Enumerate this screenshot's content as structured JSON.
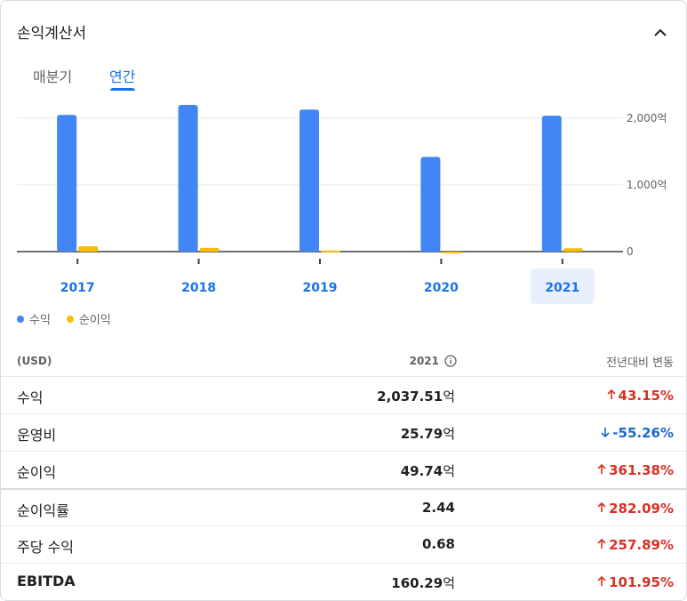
{
  "header": {
    "title": "손익계산서"
  },
  "tabs": [
    {
      "label": "매분기",
      "active": false
    },
    {
      "label": "연간",
      "active": true
    }
  ],
  "chart_data": {
    "type": "bar",
    "categories": [
      "2017",
      "2018",
      "2019",
      "2020",
      "2021"
    ],
    "selected_category": "2021",
    "series": [
      {
        "name": "수익",
        "color": "#4285f4",
        "values": [
          2050,
          2200,
          2130,
          1420,
          2037.51
        ]
      },
      {
        "name": "순이익",
        "color": "#fbbc04",
        "values": [
          80,
          55,
          15,
          -20,
          49.74
        ]
      }
    ],
    "ylim": [
      0,
      2000
    ],
    "yticks": [
      {
        "value": 2000,
        "label": "2,000억"
      },
      {
        "value": 1000,
        "label": "1,000억"
      },
      {
        "value": 0,
        "label": "0"
      }
    ],
    "grid": true,
    "legend": "bottom-left"
  },
  "table": {
    "unit_header": "(USD)",
    "year_header": "2021",
    "change_header": "전년대비 변동",
    "rows": [
      {
        "label": "수익",
        "value": "2,037.51",
        "unit": "억",
        "change": "43.15%",
        "direction": "up"
      },
      {
        "label": "운영비",
        "value": "25.79",
        "unit": "억",
        "change": "-55.26%",
        "direction": "down"
      },
      {
        "label": "순이익",
        "value": "49.74",
        "unit": "억",
        "change": "361.38%",
        "direction": "up"
      },
      {
        "label": "순이익률",
        "value": "2.44",
        "unit": "",
        "change": "282.09%",
        "direction": "up"
      },
      {
        "label": "주당 수익",
        "value": "0.68",
        "unit": "",
        "change": "257.89%",
        "direction": "up"
      },
      {
        "label": "EBITDA",
        "value": "160.29",
        "unit": "억",
        "change": "101.95%",
        "direction": "up"
      }
    ]
  },
  "colors": {
    "accent": "#1a73e8",
    "up": "#d93025",
    "down": "#1967d2"
  }
}
